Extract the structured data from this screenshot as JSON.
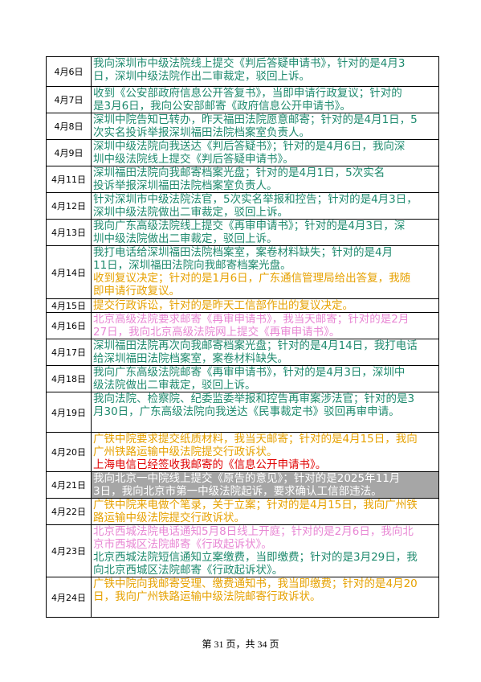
{
  "table": {
    "rows": [
      {
        "date": "4月6日",
        "entries": [
          {
            "color": "#1e8a6e",
            "lines": [
              "我向深圳市中级法院线上提交《判后答疑申请书》，针对的是4月3",
              "日，深圳中级法院作出二审裁定，驳回上诉。"
            ]
          }
        ]
      },
      {
        "date": "4月7日",
        "entries": [
          {
            "color": "#1e8a6e",
            "lines": [
              "收到《公安部政府信息公开答复书》，当即申请行政复议；针对的",
              "是3月6日，我向公安部邮寄《政府信息公开申请书》。"
            ]
          }
        ]
      },
      {
        "date": "4月8日",
        "entries": [
          {
            "color": "#1e8a6e",
            "lines": [
              "深圳中院告知已转办，昨天福田法院愿意邮寄；针对的是4月1日，5",
              "次实名投诉举报深圳福田法院档案室负责人。"
            ]
          }
        ]
      },
      {
        "date": "4月9日",
        "entries": [
          {
            "color": "#1e8a6e",
            "lines": [
              "深圳中级法院向我送达《判后答疑书》；针对的是4月6日，我向深",
              "圳中级法院线上提交《判后答疑申请书》。"
            ]
          }
        ]
      },
      {
        "date": "4月11日",
        "entries": [
          {
            "color": "#1e8a6e",
            "lines": [
              "深圳福田法院向我邮寄档案光盘；针对的是4月1日，5次实名",
              "投诉举报深圳福田法院档案室负责人。"
            ]
          }
        ]
      },
      {
        "date": "4月12日",
        "entries": [
          {
            "color": "#1e8a6e",
            "lines": [
              "针对深圳市中级法院法官，5次实名举报和控告；针对的是4月3日，",
              "深圳中级法院做出二审裁定，驳回上诉。"
            ]
          }
        ]
      },
      {
        "date": "4月13日",
        "entries": [
          {
            "color": "#1e8a6e",
            "lines": [
              "我向广东高级法院线上提交《再审申请书》；针对的是4月3日，深",
              "圳中级法院做出二审裁定，驳回上诉。"
            ]
          }
        ]
      },
      {
        "date": "4月14日",
        "entries": [
          {
            "color": "#1e8a6e",
            "lines": [
              "我打电话给深圳福田法院档案室，案卷材料缺失；针对的是4月",
              "11日，深圳福田法院向我邮寄档案光盘。"
            ]
          },
          {
            "color": "#e6a100",
            "lines": [
              "收到复议决定；针对的是1月6日，广东通信管理局给出答复，我随",
              "即申请行政复议。"
            ]
          }
        ]
      },
      {
        "date": "4月15日",
        "entries": [
          {
            "color": "#e6a100",
            "lines": [
              "提交行政诉讼，针对的是昨天工信部作出的复议决定。"
            ]
          }
        ]
      },
      {
        "date": "4月16日",
        "entries": [
          {
            "color": "#e887d4",
            "lines": [
              "北京高级法院要求邮寄《再审申请书》，我当天邮寄；针对的是2月",
              "27日，我向北京高级法院网上提交《再审申请书》。"
            ]
          }
        ]
      },
      {
        "date": "4月17日",
        "entries": [
          {
            "color": "#1e8a6e",
            "lines": [
              "深圳福田法院再次向我邮寄档案光盘；针对的是4月14日，我打电话",
              "给深圳福田法院档案室，案卷材料缺失。"
            ]
          }
        ]
      },
      {
        "date": "4月18日",
        "entries": [
          {
            "color": "#1e8a6e",
            "lines": [
              "我向广东高级法院邮寄《再审申请书》，针对的是4月3日，深圳中",
              "级法院做出二审裁定，驳回上诉。"
            ]
          }
        ]
      },
      {
        "date": "4月19日",
        "entries": [
          {
            "color": "#1e8a6e",
            "lines": [
              "我向法院、检察院、纪委监委举报和控告再审案涉法官；针对的是3",
              "月30日，广东高级法院向我送达《民事裁定书》驳回再审申请。"
            ]
          }
        ]
      },
      {
        "date": "4月20日",
        "entries": [
          {
            "color": "#e6a100",
            "lines": [
              "广铁中院要求提交纸质材料，我当天邮寄；针对的是4月15日，我向",
              "广州铁路运输中级法院提交行政诉状。"
            ]
          },
          {
            "color": "#e00000",
            "lines": [
              "上海电信已经签收我邮寄的《信息公开申请书》。"
            ]
          }
        ]
      },
      {
        "date": "4月21日",
        "entries": [
          {
            "color": "#ffffff",
            "highlight": true,
            "lines": [
              "我向北京一中院线上提交《原告的意见》；针对的是2025年11月",
              "3日，我向北京市第一中级法院起诉，要求确认工信部违法。"
            ]
          }
        ]
      },
      {
        "date": "4月22日",
        "entries": [
          {
            "color": "#e6a100",
            "lines": [
              "广铁中院来电做个笔录，关于立案；针对的是4月15日，我向广州铁",
              "路运输中级法院提交行政诉状。"
            ]
          }
        ]
      },
      {
        "date": "4月23日",
        "entries": [
          {
            "color": "#e887d4",
            "lines": [
              "北京西城法院电话通知5月8日线上开庭；针对的是2月6日，我向北",
              "京市西城区法院邮寄《行政起诉状》。"
            ]
          },
          {
            "color": "#1e8a6e",
            "lines": [
              "北京西城法院短信通知立案缴费，当即缴费；针对的是3月29日，我",
              "向北京西城区法院邮寄《行政起诉状》。"
            ]
          }
        ]
      },
      {
        "date": "4月24日",
        "entries": [
          {
            "color": "#e6a100",
            "lines": [
              "广铁中院向我邮寄受理、缴费通知书，我当即缴费；针对的是4月20",
              "日，我向广州铁路运输中级法院邮寄行政诉状。"
            ]
          }
        ]
      }
    ]
  },
  "footer": {
    "text": "第 31 页，共 34 页"
  }
}
